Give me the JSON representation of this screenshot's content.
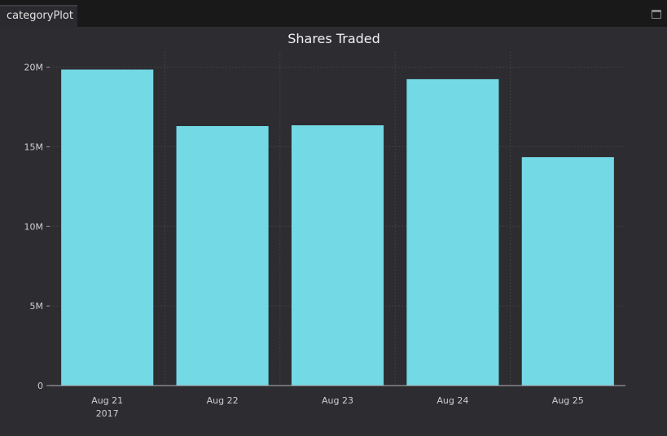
{
  "tab": {
    "label": "categoryPlot"
  },
  "chart_data": {
    "type": "bar",
    "title": "Shares Traded",
    "xlabel": "",
    "ylabel": "",
    "categories": [
      "Aug 21",
      "Aug 22",
      "Aug 23",
      "Aug 24",
      "Aug 25"
    ],
    "category_sublabels": [
      "2017",
      "",
      "",
      "",
      ""
    ],
    "values": [
      19850000,
      16300000,
      16350000,
      19250000,
      14350000
    ],
    "ylim": [
      0,
      21000000
    ],
    "yticks": [
      0,
      5000000,
      10000000,
      15000000,
      20000000
    ],
    "ytick_labels": [
      "0",
      "5M",
      "10M",
      "15M",
      "20M"
    ],
    "bar_color": "#72d9e5",
    "grid": true,
    "legend": "none"
  }
}
